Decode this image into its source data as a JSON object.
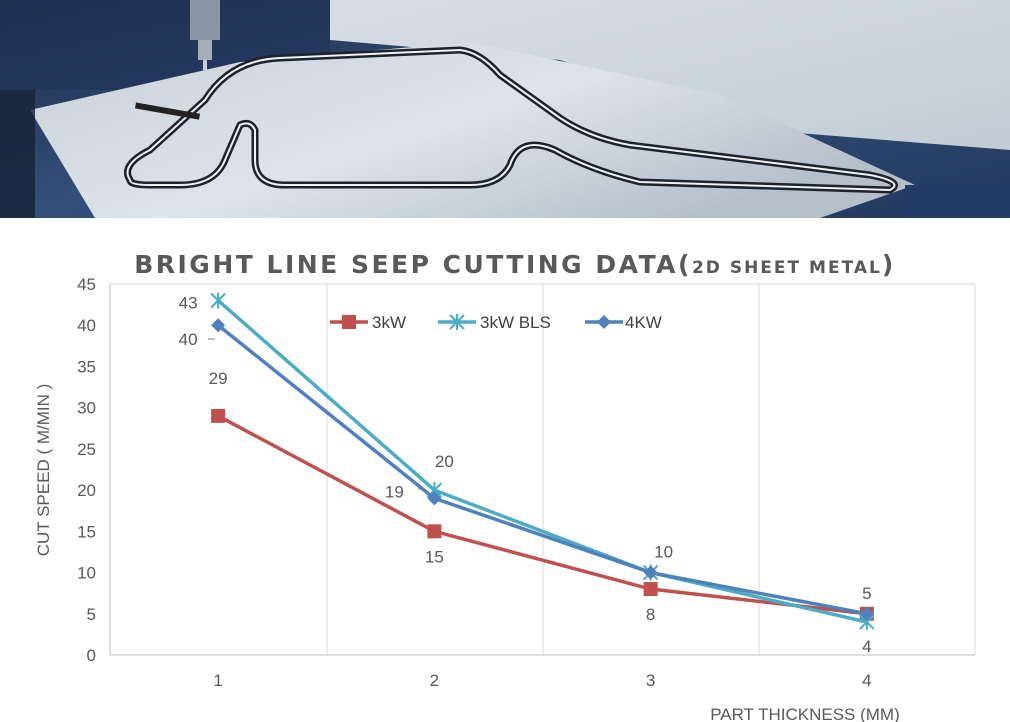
{
  "photo": {
    "subject": "laser-cut-sheet-metal-photo"
  },
  "chart_data": {
    "type": "line",
    "title_main": "BRIGHT LINE SEEP CUTTING DATA(",
    "title_small": "2D SHEET METAL",
    "title_end": ")",
    "xlabel": "PART THICKNESS (MM)",
    "ylabel": "CUT SPEED ( M/MIN )",
    "categories": [
      "1",
      "2",
      "3",
      "4"
    ],
    "ylim": [
      0,
      45
    ],
    "yticks": [
      "0",
      "5",
      "10",
      "15",
      "20",
      "25",
      "30",
      "35",
      "40",
      "45"
    ],
    "grid": "vertical",
    "legend_position": "top-center",
    "series": [
      {
        "name": "3kW",
        "color": "#c0504d",
        "marker": "square",
        "values": [
          29,
          15,
          8,
          5
        ],
        "labels": [
          "29",
          "15",
          "8",
          ""
        ]
      },
      {
        "name": "3kW BLS",
        "color": "#4bacc6",
        "marker": "star",
        "values": [
          43,
          20,
          10,
          4
        ],
        "labels": [
          "43",
          "20",
          "",
          "4"
        ]
      },
      {
        "name": "4KW",
        "color": "#4f81bd",
        "marker": "diamond",
        "values": [
          40,
          19,
          10,
          5
        ],
        "labels": [
          "40",
          "19",
          "10",
          "5"
        ]
      }
    ]
  }
}
